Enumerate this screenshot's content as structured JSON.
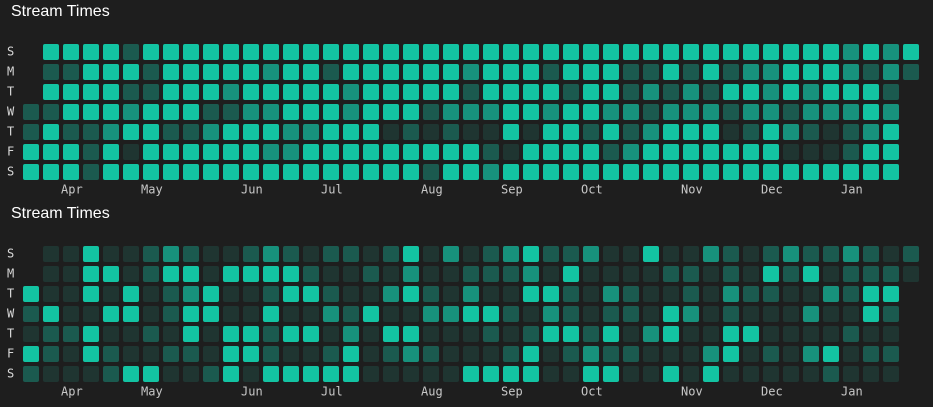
{
  "chart_data": [
    {
      "type": "heatmap",
      "title": "Stream Times",
      "y_categories": [
        "S",
        "M",
        "T",
        "W",
        "T",
        "F",
        "S"
      ],
      "x_categories": [
        null,
        null,
        "Apr",
        null,
        null,
        null,
        "May",
        null,
        null,
        null,
        null,
        "Jun",
        null,
        null,
        null,
        "Jul",
        null,
        null,
        null,
        null,
        "Aug",
        null,
        null,
        null,
        "Sep",
        null,
        null,
        null,
        "Oct",
        null,
        null,
        null,
        null,
        "Nov",
        null,
        null,
        null,
        "Dec",
        null,
        null,
        null,
        "Jan",
        null,
        null,
        null
      ],
      "colors": [
        "#1f3531",
        "#1b5a4f",
        "#17917c",
        "#13c3a2"
      ],
      "values": [
        [
          null,
          3,
          3,
          3,
          3,
          1,
          3,
          3,
          3,
          3,
          3,
          3,
          3,
          3,
          3,
          3,
          3,
          3,
          3,
          3,
          3,
          3,
          3,
          3,
          3,
          3,
          3,
          3,
          3,
          3,
          3,
          3,
          3,
          3,
          3,
          3,
          3,
          3,
          3,
          3,
          3,
          2,
          3,
          2,
          3
        ],
        [
          null,
          1,
          1,
          3,
          3,
          3,
          1,
          3,
          3,
          3,
          3,
          3,
          2,
          3,
          3,
          1,
          3,
          3,
          3,
          3,
          3,
          3,
          2,
          3,
          3,
          3,
          1,
          3,
          3,
          3,
          1,
          1,
          3,
          1,
          3,
          1,
          2,
          2,
          3,
          3,
          3,
          2,
          1,
          2,
          1
        ],
        [
          null,
          3,
          3,
          3,
          3,
          1,
          1,
          3,
          3,
          3,
          2,
          3,
          3,
          3,
          3,
          3,
          2,
          3,
          3,
          3,
          3,
          3,
          1,
          3,
          3,
          3,
          3,
          1,
          3,
          3,
          1,
          2,
          1,
          2,
          1,
          3,
          3,
          2,
          3,
          2,
          3,
          3,
          3,
          1,
          null
        ],
        [
          1,
          1,
          3,
          3,
          3,
          2,
          3,
          3,
          3,
          1,
          1,
          2,
          2,
          3,
          3,
          3,
          2,
          3,
          3,
          3,
          1,
          2,
          2,
          2,
          3,
          3,
          2,
          3,
          3,
          2,
          2,
          1,
          2,
          2,
          2,
          1,
          2,
          2,
          1,
          2,
          2,
          2,
          3,
          2,
          null
        ],
        [
          1,
          3,
          1,
          1,
          2,
          3,
          3,
          1,
          1,
          2,
          3,
          3,
          3,
          2,
          2,
          3,
          3,
          3,
          0,
          1,
          0,
          1,
          0,
          0,
          3,
          0,
          3,
          3,
          1,
          3,
          1,
          2,
          3,
          3,
          3,
          0,
          1,
          3,
          2,
          1,
          0,
          1,
          2,
          3,
          null
        ],
        [
          3,
          3,
          3,
          1,
          3,
          0,
          3,
          3,
          3,
          3,
          3,
          3,
          2,
          2,
          3,
          3,
          3,
          3,
          3,
          3,
          3,
          3,
          3,
          1,
          0,
          3,
          3,
          3,
          3,
          1,
          2,
          3,
          3,
          3,
          3,
          3,
          3,
          3,
          0,
          0,
          0,
          1,
          3,
          3,
          null
        ],
        [
          3,
          3,
          3,
          1,
          3,
          3,
          3,
          3,
          3,
          3,
          3,
          3,
          3,
          3,
          3,
          3,
          3,
          3,
          3,
          3,
          1,
          3,
          3,
          2,
          3,
          3,
          3,
          3,
          3,
          3,
          3,
          3,
          3,
          3,
          3,
          3,
          3,
          3,
          3,
          3,
          3,
          3,
          3,
          3,
          null
        ]
      ]
    },
    {
      "type": "heatmap",
      "title": "Stream Times",
      "y_categories": [
        "S",
        "M",
        "T",
        "W",
        "T",
        "F",
        "S"
      ],
      "x_categories": [
        null,
        null,
        "Apr",
        null,
        null,
        null,
        "May",
        null,
        null,
        null,
        null,
        "Jun",
        null,
        null,
        null,
        "Jul",
        null,
        null,
        null,
        null,
        "Aug",
        null,
        null,
        null,
        "Sep",
        null,
        null,
        null,
        "Oct",
        null,
        null,
        null,
        null,
        "Nov",
        null,
        null,
        null,
        "Dec",
        null,
        null,
        null,
        "Jan",
        null,
        null,
        null
      ],
      "colors": [
        "#1f3531",
        "#1b5a4f",
        "#17917c",
        "#13c3a2"
      ],
      "values": [
        [
          null,
          0,
          0,
          3,
          0,
          0,
          1,
          2,
          1,
          0,
          0,
          1,
          2,
          1,
          0,
          1,
          1,
          0,
          1,
          3,
          0,
          2,
          0,
          1,
          2,
          3,
          1,
          1,
          2,
          0,
          0,
          3,
          0,
          0,
          2,
          1,
          0,
          1,
          2,
          1,
          1,
          2,
          1,
          0,
          1
        ],
        [
          null,
          0,
          0,
          3,
          3,
          0,
          1,
          3,
          3,
          0,
          3,
          3,
          3,
          3,
          1,
          0,
          0,
          1,
          0,
          2,
          0,
          0,
          1,
          1,
          1,
          2,
          0,
          3,
          0,
          0,
          0,
          0,
          1,
          1,
          0,
          1,
          0,
          3,
          1,
          3,
          0,
          1,
          1,
          1,
          0
        ],
        [
          3,
          0,
          0,
          3,
          0,
          3,
          0,
          1,
          2,
          3,
          0,
          0,
          1,
          3,
          3,
          1,
          0,
          0,
          2,
          3,
          1,
          0,
          2,
          0,
          0,
          3,
          3,
          1,
          0,
          2,
          1,
          0,
          0,
          1,
          0,
          2,
          1,
          1,
          0,
          0,
          2,
          1,
          3,
          3,
          null
        ],
        [
          1,
          3,
          0,
          0,
          3,
          3,
          0,
          1,
          3,
          3,
          0,
          0,
          3,
          0,
          0,
          2,
          1,
          3,
          0,
          0,
          2,
          2,
          3,
          3,
          1,
          0,
          2,
          1,
          0,
          1,
          1,
          0,
          3,
          2,
          0,
          1,
          0,
          0,
          0,
          2,
          0,
          0,
          3,
          1,
          null
        ],
        [
          0,
          1,
          1,
          3,
          0,
          0,
          1,
          0,
          3,
          0,
          3,
          3,
          1,
          3,
          3,
          0,
          2,
          0,
          3,
          3,
          0,
          0,
          0,
          1,
          0,
          1,
          3,
          3,
          1,
          3,
          0,
          2,
          3,
          0,
          0,
          3,
          3,
          0,
          0,
          0,
          0,
          1,
          0,
          0,
          null
        ],
        [
          3,
          1,
          0,
          3,
          1,
          0,
          0,
          1,
          1,
          0,
          3,
          3,
          1,
          0,
          0,
          1,
          3,
          0,
          1,
          2,
          1,
          0,
          0,
          0,
          1,
          3,
          0,
          1,
          2,
          1,
          1,
          0,
          0,
          0,
          2,
          3,
          0,
          1,
          0,
          2,
          3,
          0,
          1,
          1,
          null
        ],
        [
          1,
          0,
          0,
          0,
          1,
          3,
          3,
          0,
          0,
          1,
          3,
          0,
          3,
          3,
          3,
          3,
          3,
          0,
          0,
          0,
          0,
          0,
          3,
          3,
          3,
          3,
          0,
          0,
          3,
          3,
          0,
          0,
          3,
          0,
          3,
          0,
          0,
          0,
          0,
          0,
          1,
          0,
          0,
          0,
          null
        ]
      ]
    }
  ]
}
